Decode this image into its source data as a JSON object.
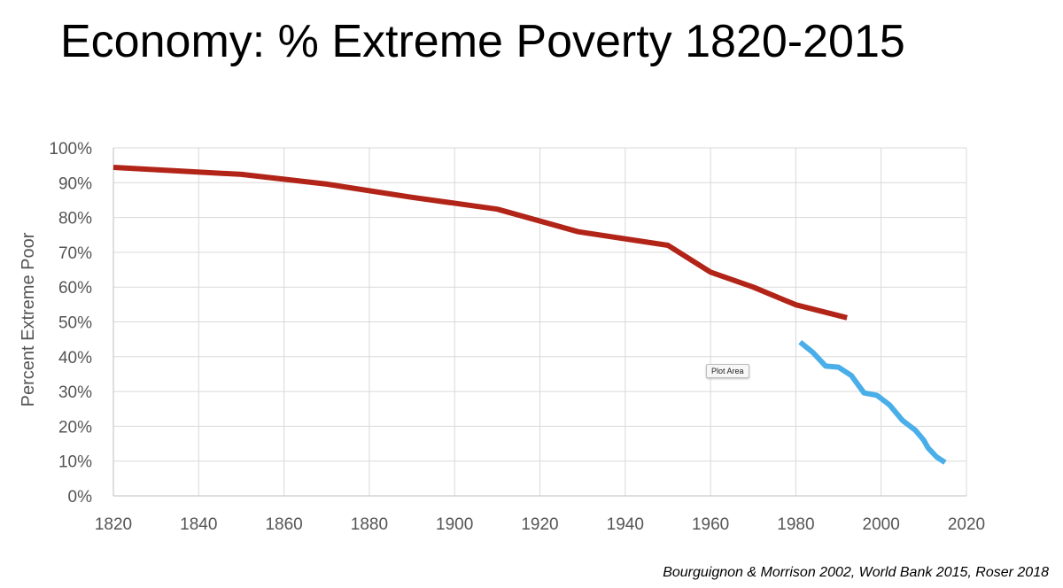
{
  "header": {
    "title": "Economy: % Extreme Poverty 1820-2015"
  },
  "tooltip": {
    "label": "Plot Area"
  },
  "footer": {
    "source": "Bourguignon & Morrison 2002, World Bank 2015, Roser 2018"
  },
  "chart_data": {
    "type": "line",
    "title": "Economy: % Extreme Poverty 1820-2015",
    "xlabel": "",
    "ylabel": "Percent Extreme Poor",
    "xlim": [
      1820,
      2020
    ],
    "ylim": [
      0,
      100
    ],
    "x_ticks": [
      "1820",
      "1840",
      "1860",
      "1880",
      "1900",
      "1920",
      "1940",
      "1960",
      "1980",
      "2000",
      "2020"
    ],
    "y_ticks": [
      "0%",
      "10%",
      "20%",
      "30%",
      "40%",
      "50%",
      "60%",
      "70%",
      "80%",
      "90%",
      "100%"
    ],
    "grid": true,
    "legend": "none",
    "series": [
      {
        "color": "#b22418",
        "points": [
          [
            1820,
            94.4
          ],
          [
            1850,
            92.4
          ],
          [
            1870,
            89.6
          ],
          [
            1890,
            85.8
          ],
          [
            1910,
            82.4
          ],
          [
            1929,
            75.9
          ],
          [
            1950,
            72.0
          ],
          [
            1960,
            64.3
          ],
          [
            1970,
            60.0
          ],
          [
            1980,
            54.9
          ],
          [
            1992,
            51.2
          ]
        ]
      },
      {
        "color": "#4aaee8",
        "points": [
          [
            1981,
            44.2
          ],
          [
            1984,
            41.2
          ],
          [
            1987,
            37.3
          ],
          [
            1990,
            37.0
          ],
          [
            1993,
            34.6
          ],
          [
            1996,
            29.6
          ],
          [
            1999,
            28.9
          ],
          [
            2002,
            26.1
          ],
          [
            2005,
            21.7
          ],
          [
            2008,
            18.9
          ],
          [
            2010,
            16.0
          ],
          [
            2011,
            13.8
          ],
          [
            2013,
            11.2
          ],
          [
            2015,
            9.6
          ]
        ]
      }
    ]
  }
}
